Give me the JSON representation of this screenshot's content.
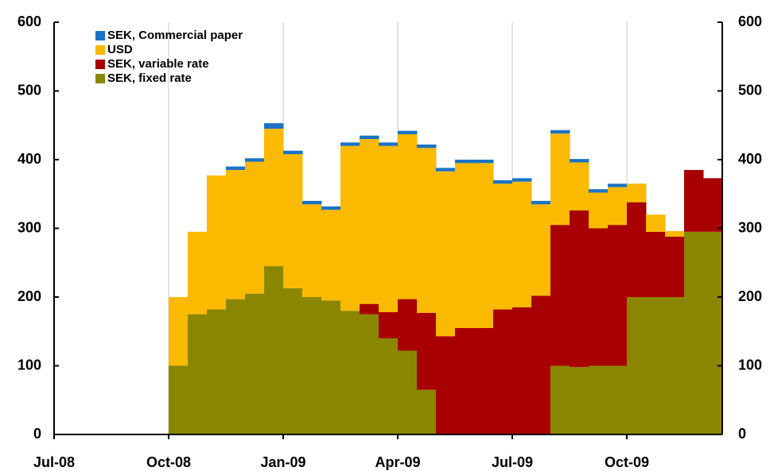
{
  "chart_data": {
    "type": "stacked_bar",
    "categories": [
      "Jul-08",
      null,
      null,
      null,
      null,
      null,
      "Oct-08",
      null,
      null,
      null,
      null,
      null,
      "Jan-09",
      null,
      null,
      null,
      null,
      null,
      "Apr-09",
      null,
      null,
      null,
      null,
      null,
      "Jul-09",
      null,
      null,
      null,
      null,
      null,
      "Oct-09",
      null,
      null,
      null,
      null
    ],
    "series": [
      {
        "name": "SEK, fixed rate",
        "color": "#8b8600",
        "values": [
          0,
          0,
          0,
          0,
          0,
          0,
          100,
          175,
          182,
          197,
          205,
          245,
          213,
          200,
          195,
          180,
          175,
          140,
          122,
          65,
          0,
          0,
          0,
          0,
          0,
          0,
          100,
          98,
          100,
          100,
          200,
          200,
          200,
          295,
          295
        ]
      },
      {
        "name": "SEK, variable rate",
        "color": "#a80000",
        "values": [
          0,
          0,
          0,
          0,
          0,
          0,
          0,
          0,
          0,
          0,
          0,
          0,
          0,
          0,
          0,
          0,
          15,
          38,
          75,
          112,
          143,
          155,
          155,
          182,
          185,
          202,
          205,
          228,
          200,
          205,
          138,
          95,
          88,
          90,
          78
        ]
      },
      {
        "name": "USD",
        "color": "#fbb900",
        "values": [
          0,
          0,
          0,
          0,
          0,
          0,
          100,
          120,
          195,
          188,
          192,
          200,
          195,
          135,
          132,
          240,
          240,
          242,
          240,
          240,
          240,
          240,
          240,
          183,
          183,
          133,
          133,
          70,
          52,
          55,
          27,
          25,
          8,
          0,
          0
        ]
      },
      {
        "name": "SEK, Commercial paper",
        "color": "#1a73c4",
        "values": [
          0,
          0,
          0,
          0,
          0,
          0,
          0,
          0,
          0,
          5,
          5,
          8,
          5,
          5,
          5,
          5,
          5,
          5,
          5,
          5,
          5,
          5,
          5,
          5,
          5,
          5,
          5,
          5,
          5,
          5,
          0,
          0,
          0,
          0,
          0
        ]
      }
    ],
    "ylim": [
      0,
      600
    ],
    "yticks": [
      0,
      100,
      200,
      300,
      400,
      500,
      600
    ],
    "y2lim": [
      0,
      600
    ],
    "y2ticks": [
      0,
      100,
      200,
      300,
      400,
      500,
      600
    ],
    "grid": true,
    "legend": "top-left"
  }
}
